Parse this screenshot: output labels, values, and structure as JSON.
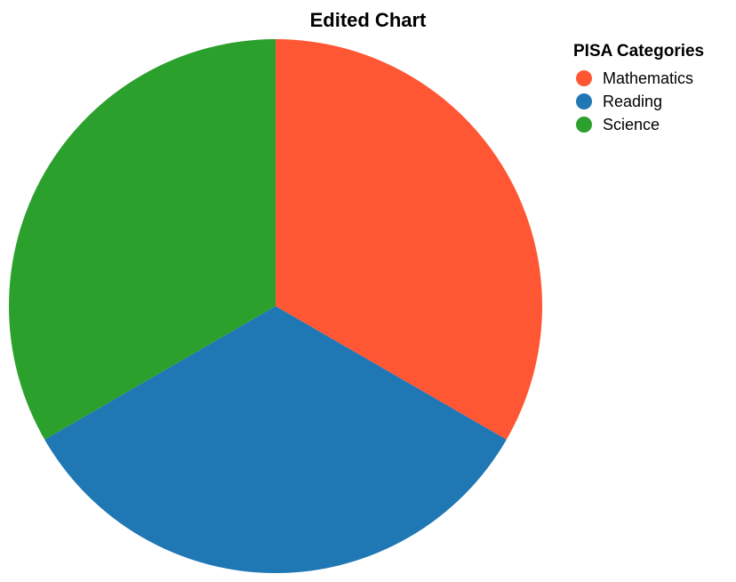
{
  "chart_data": {
    "type": "pie",
    "title": "Edited Chart",
    "legend": {
      "title": "PISA Categories",
      "placement": "top-right"
    },
    "categories": [
      "Mathematics",
      "Reading",
      "Science"
    ],
    "values": [
      1,
      1,
      1
    ],
    "colors": [
      "#ff5733",
      "#1f77b4",
      "#2ca02c"
    ],
    "start_angle_deg": 0,
    "direction": "clockwise"
  }
}
